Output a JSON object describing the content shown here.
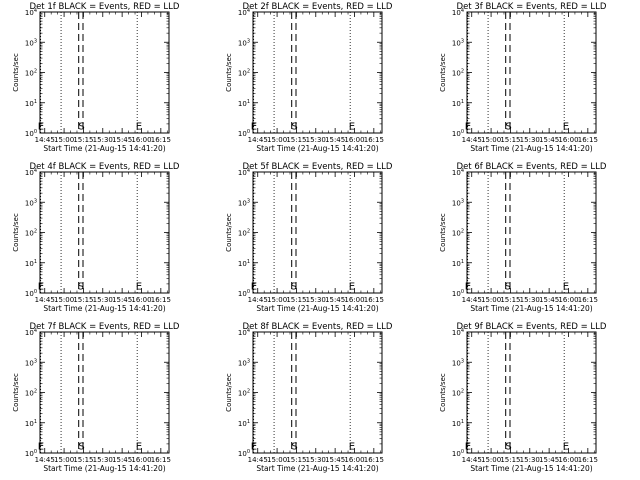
{
  "chart_data": [
    {
      "type": "line",
      "title": "Det 1f BLACK = Events, RED = LLD",
      "xlabel": "Start Time (21-Aug-15 14:41:20)",
      "ylabel": "Counts/sec",
      "series": [],
      "y_scale": "log",
      "ylim": [
        1,
        10000
      ],
      "y_ticks": [
        "10^0",
        "10^1",
        "10^2",
        "10^3",
        "10^4"
      ],
      "x_ticks": [
        "14:45",
        "15:00",
        "15:15",
        "15:30",
        "15:45",
        "16:00",
        "16:15"
      ],
      "xlim": [
        "14:41:20",
        "16:21:20"
      ],
      "dotted_lines": [
        "14:41:50",
        "14:57:40",
        "15:56:40"
      ],
      "dashed_lines": [
        "15:11:20",
        "15:14:40"
      ],
      "markers": [
        {
          "label": "E",
          "time": "14:42:00"
        },
        {
          "label": "S",
          "time": "15:13:30"
        },
        {
          "label": "E",
          "time": "15:58:00"
        }
      ]
    },
    {
      "type": "line",
      "title": "Det 2f BLACK = Events, RED = LLD",
      "xlabel": "Start Time (21-Aug-15 14:41:20)",
      "ylabel": "Counts/sec",
      "series": [],
      "y_scale": "log",
      "ylim": [
        1,
        10000
      ],
      "y_ticks": [
        "10^0",
        "10^1",
        "10^2",
        "10^3",
        "10^4"
      ],
      "x_ticks": [
        "14:45",
        "15:00",
        "15:15",
        "15:30",
        "15:45",
        "16:00",
        "16:15"
      ],
      "xlim": [
        "14:41:20",
        "16:21:20"
      ],
      "dotted_lines": [
        "14:41:50",
        "14:57:40",
        "15:56:40"
      ],
      "dashed_lines": [
        "15:11:20",
        "15:14:40"
      ],
      "markers": [
        {
          "label": "E",
          "time": "14:42:00"
        },
        {
          "label": "S",
          "time": "15:13:30"
        },
        {
          "label": "E",
          "time": "15:58:00"
        }
      ]
    },
    {
      "type": "line",
      "title": "Det 3f BLACK = Events, RED = LLD",
      "xlabel": "Start Time (21-Aug-15 14:41:20)",
      "ylabel": "Counts/sec",
      "series": [],
      "y_scale": "log",
      "ylim": [
        1,
        10000
      ],
      "y_ticks": [
        "10^0",
        "10^1",
        "10^2",
        "10^3",
        "10^4"
      ],
      "x_ticks": [
        "14:45",
        "15:00",
        "15:15",
        "15:30",
        "15:45",
        "16:00",
        "16:15"
      ],
      "xlim": [
        "14:41:20",
        "16:21:20"
      ],
      "dotted_lines": [
        "14:41:50",
        "14:57:40",
        "15:56:40"
      ],
      "dashed_lines": [
        "15:11:20",
        "15:14:40"
      ],
      "markers": [
        {
          "label": "E",
          "time": "14:42:00"
        },
        {
          "label": "S",
          "time": "15:13:30"
        },
        {
          "label": "E",
          "time": "15:58:00"
        }
      ]
    },
    {
      "type": "line",
      "title": "Det 4f BLACK = Events, RED = LLD",
      "xlabel": "Start Time (21-Aug-15 14:41:20)",
      "ylabel": "Counts/sec",
      "series": [],
      "y_scale": "log",
      "ylim": [
        1,
        10000
      ],
      "y_ticks": [
        "10^0",
        "10^1",
        "10^2",
        "10^3",
        "10^4"
      ],
      "x_ticks": [
        "14:45",
        "15:00",
        "15:15",
        "15:30",
        "15:45",
        "16:00",
        "16:15"
      ],
      "xlim": [
        "14:41:20",
        "16:21:20"
      ],
      "dotted_lines": [
        "14:41:50",
        "14:57:40",
        "15:56:40"
      ],
      "dashed_lines": [
        "15:11:20",
        "15:14:40"
      ],
      "markers": [
        {
          "label": "E",
          "time": "14:42:00"
        },
        {
          "label": "S",
          "time": "15:13:00"
        },
        {
          "label": "E",
          "time": "15:58:00"
        }
      ]
    },
    {
      "type": "line",
      "title": "Det 5f BLACK = Events, RED = LLD",
      "xlabel": "Start Time (21-Aug-15 14:41:20)",
      "ylabel": "Counts/sec",
      "series": [],
      "y_scale": "log",
      "ylim": [
        1,
        10000
      ],
      "y_ticks": [
        "10^0",
        "10^1",
        "10^2",
        "10^3",
        "10^4"
      ],
      "x_ticks": [
        "14:45",
        "15:00",
        "15:15",
        "15:30",
        "15:45",
        "16:00",
        "16:15"
      ],
      "xlim": [
        "14:41:20",
        "16:21:20"
      ],
      "dotted_lines": [
        "14:41:50",
        "14:57:40",
        "15:56:40"
      ],
      "dashed_lines": [
        "15:11:20",
        "15:14:40"
      ],
      "markers": [
        {
          "label": "E",
          "time": "14:42:00"
        },
        {
          "label": "S",
          "time": "15:13:00"
        },
        {
          "label": "E",
          "time": "15:58:00"
        }
      ]
    },
    {
      "type": "line",
      "title": "Det 6f BLACK = Events, RED = LLD",
      "xlabel": "Start Time (21-Aug-15 14:41:20)",
      "ylabel": "Counts/sec",
      "series": [],
      "y_scale": "log",
      "ylim": [
        1,
        10000
      ],
      "y_ticks": [
        "10^0",
        "10^1",
        "10^2",
        "10^3",
        "10^4"
      ],
      "x_ticks": [
        "14:45",
        "15:00",
        "15:15",
        "15:30",
        "15:45",
        "16:00",
        "16:15"
      ],
      "xlim": [
        "14:41:20",
        "16:21:20"
      ],
      "dotted_lines": [
        "14:41:50",
        "14:57:40",
        "15:56:40"
      ],
      "dashed_lines": [
        "15:11:20",
        "15:14:40"
      ],
      "markers": [
        {
          "label": "E",
          "time": "14:42:00"
        },
        {
          "label": "S",
          "time": "15:13:00"
        },
        {
          "label": "E",
          "time": "15:58:00"
        }
      ]
    },
    {
      "type": "line",
      "title": "Det 7f BLACK = Events, RED = LLD",
      "xlabel": "Start Time (21-Aug-15 14:41:20)",
      "ylabel": "Counts/sec",
      "series": [],
      "y_scale": "log",
      "ylim": [
        1,
        10000
      ],
      "y_ticks": [
        "10^0",
        "10^1",
        "10^2",
        "10^3",
        "10^4"
      ],
      "x_ticks": [
        "14:45",
        "15:00",
        "15:15",
        "15:30",
        "15:45",
        "16:00",
        "16:15"
      ],
      "xlim": [
        "14:41:20",
        "16:21:20"
      ],
      "dotted_lines": [
        "14:41:50",
        "14:57:40",
        "15:56:40"
      ],
      "dashed_lines": [
        "15:11:20",
        "15:14:40"
      ],
      "markers": [
        {
          "label": "E",
          "time": "14:42:00"
        },
        {
          "label": "S",
          "time": "15:13:30"
        },
        {
          "label": "E",
          "time": "15:58:00"
        }
      ]
    },
    {
      "type": "line",
      "title": "Det 8f BLACK = Events, RED = LLD",
      "xlabel": "Start Time (21-Aug-15 14:41:20)",
      "ylabel": "Counts/sec",
      "series": [],
      "y_scale": "log",
      "ylim": [
        1,
        10000
      ],
      "y_ticks": [
        "10^0",
        "10^1",
        "10^2",
        "10^3",
        "10^4"
      ],
      "x_ticks": [
        "14:45",
        "15:00",
        "15:15",
        "15:30",
        "15:45",
        "16:00",
        "16:15"
      ],
      "xlim": [
        "14:41:20",
        "16:21:20"
      ],
      "dotted_lines": [
        "14:41:50",
        "14:57:40",
        "15:56:40"
      ],
      "dashed_lines": [
        "15:11:20",
        "15:14:40"
      ],
      "markers": [
        {
          "label": "E",
          "time": "14:42:00"
        },
        {
          "label": "S",
          "time": "15:13:30"
        },
        {
          "label": "E",
          "time": "15:58:00"
        }
      ]
    },
    {
      "type": "line",
      "title": "Det 9f BLACK = Events, RED = LLD",
      "xlabel": "Start Time (21-Aug-15 14:41:20)",
      "ylabel": "Counts/sec",
      "series": [],
      "y_scale": "log",
      "ylim": [
        1,
        10000
      ],
      "y_ticks": [
        "10^0",
        "10^1",
        "10^2",
        "10^3",
        "10^4"
      ],
      "x_ticks": [
        "14:45",
        "15:00",
        "15:15",
        "15:30",
        "15:45",
        "16:00",
        "16:15"
      ],
      "xlim": [
        "14:41:20",
        "16:21:20"
      ],
      "dotted_lines": [
        "14:41:50",
        "14:57:40",
        "15:56:40"
      ],
      "dashed_lines": [
        "15:11:20",
        "15:14:40"
      ],
      "markers": [
        {
          "label": "E",
          "time": "14:42:00"
        },
        {
          "label": "S",
          "time": "15:13:30"
        },
        {
          "label": "E",
          "time": "15:58:00"
        }
      ]
    }
  ]
}
